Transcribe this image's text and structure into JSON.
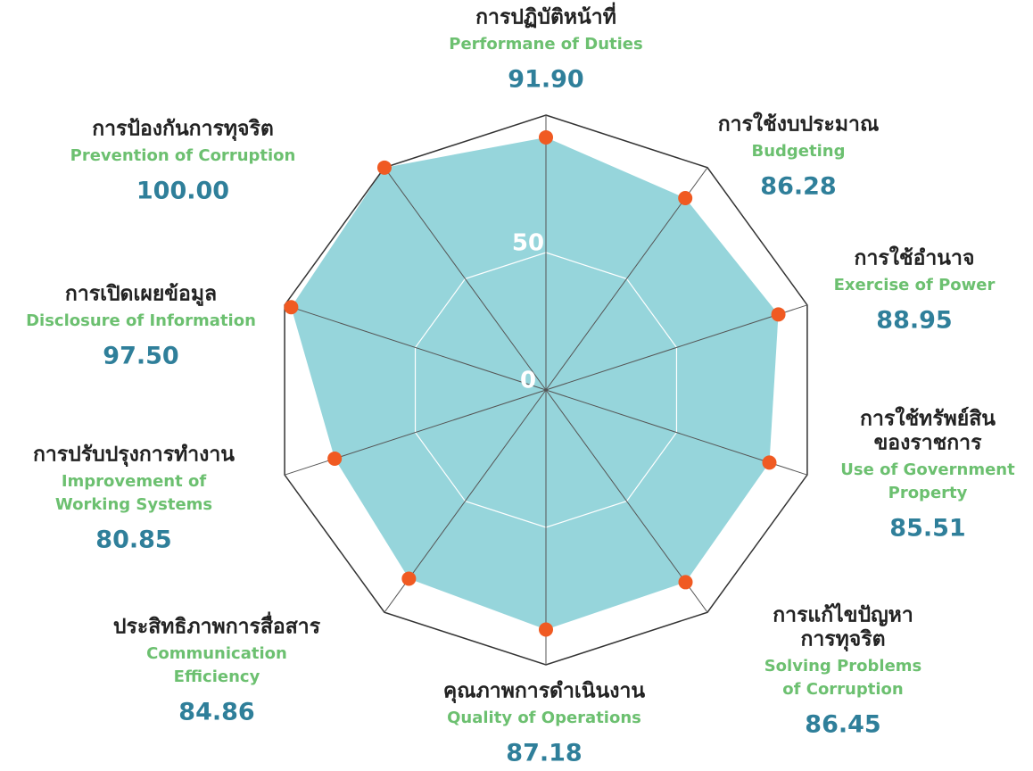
{
  "chart_data": {
    "type": "radar",
    "ylim": [
      0,
      100
    ],
    "yticks": [
      0,
      50
    ],
    "fill_color": "#96d5db",
    "point_color": "#f05a22",
    "categories": [
      {
        "thai": [
          "การปฏิบัติหน้าที่"
        ],
        "english": [
          "Performane of Duties"
        ]
      },
      {
        "thai": [
          "การใช้งบประมาณ"
        ],
        "english": [
          "Budgeting"
        ]
      },
      {
        "thai": [
          "การใช้อำนาจ"
        ],
        "english": [
          "Exercise of Power"
        ]
      },
      {
        "thai": [
          "การใช้ทรัพย์สิน",
          "ของราชการ"
        ],
        "english": [
          "Use of Government",
          "Property"
        ]
      },
      {
        "thai": [
          "การแก้ไขปัญหา",
          "การทุจริต"
        ],
        "english": [
          "Solving Problems",
          "of Corruption"
        ]
      },
      {
        "thai": [
          "คุณภาพการดำเนินงาน"
        ],
        "english": [
          "Quality of Operations"
        ]
      },
      {
        "thai": [
          "ประสิทธิภาพการสื่อสาร"
        ],
        "english": [
          "Communication",
          "Efficiency"
        ]
      },
      {
        "thai": [
          "การปรับปรุงการทำงาน"
        ],
        "english": [
          "Improvement of",
          "Working Systems"
        ]
      },
      {
        "thai": [
          "การเปิดเผยข้อมูล"
        ],
        "english": [
          "Disclosure of Information"
        ]
      },
      {
        "thai": [
          "การป้องกันการทุจริต"
        ],
        "english": [
          "Prevention of Corruption"
        ]
      }
    ],
    "values": [
      91.9,
      86.28,
      88.95,
      85.51,
      86.45,
      87.18,
      84.86,
      80.85,
      97.5,
      100
    ],
    "value_labels": [
      "91.90",
      "86.28",
      "88.95",
      "85.51",
      "86.45",
      "87.18",
      "84.86",
      "80.85",
      "97.50",
      "100.00"
    ]
  }
}
